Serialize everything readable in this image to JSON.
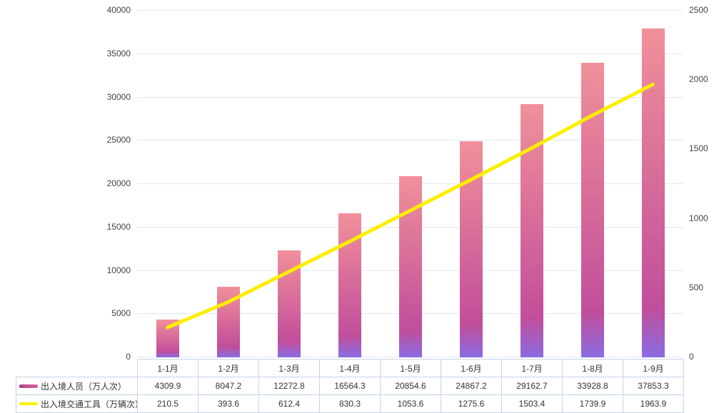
{
  "chart_data": {
    "type": "combo",
    "categories": [
      "1-1月",
      "1-2月",
      "1-3月",
      "1-4月",
      "1-5月",
      "1-6月",
      "1-7月",
      "1-8月",
      "1-9月"
    ],
    "series": [
      {
        "name": "出入境人员（万人次）",
        "type": "bar",
        "axis": "left",
        "values": [
          4309.9,
          8047.2,
          12272.8,
          16564.3,
          20854.6,
          24867.2,
          29162.7,
          33928.8,
          37853.3
        ]
      },
      {
        "name": "出入境交通工具（万辆次）",
        "type": "line",
        "axis": "right",
        "values": [
          210.5,
          393.6,
          612.4,
          830.3,
          1053.6,
          1275.6,
          1503.4,
          1739.9,
          1963.9
        ]
      }
    ],
    "left_axis": {
      "min": 0,
      "max": 40000,
      "step": 5000,
      "tick_labels": [
        "0",
        "5000",
        "10000",
        "15000",
        "20000",
        "25000",
        "30000",
        "35000",
        "40000"
      ]
    },
    "right_axis": {
      "min": 0,
      "max": 2500,
      "step": 500,
      "tick_labels": [
        "0",
        "500",
        "1000",
        "1500",
        "2000",
        "2500"
      ]
    },
    "grid": true,
    "legend_position": "table-left",
    "title": "",
    "xlabel": "",
    "ylabel": ""
  },
  "colors": {
    "bar_gradient_top": "#f1909a",
    "bar_gradient_mid": "#c14e9b",
    "bar_gradient_bottom": "#8a6ce3",
    "line": "#ffee00",
    "grid_line": "#e2e8f2",
    "table_border": "#c6d3e8",
    "text": "#333333"
  }
}
